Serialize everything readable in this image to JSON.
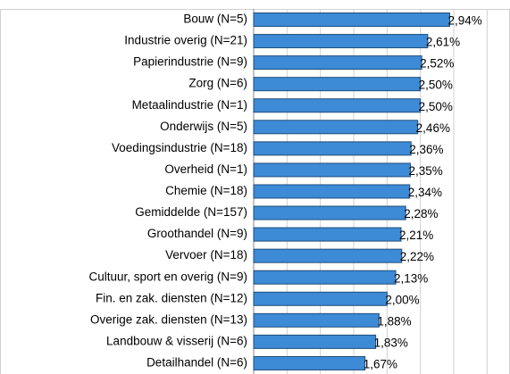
{
  "chart_data": {
    "type": "bar",
    "orientation": "horizontal",
    "categories": [
      "Bouw (N=5)",
      "Industrie overig (N=21)",
      "Papierindustrie (N=9)",
      "Zorg (N=6)",
      "Metaalindustrie (N=1)",
      "Onderwijs (N=5)",
      "Voedingsindustrie (N=18)",
      "Overheid (N=1)",
      "Chemie (N=18)",
      "Gemiddelde (N=157)",
      "Groothandel (N=9)",
      "Vervoer (N=18)",
      "Cultuur, sport en overig (N=9)",
      "Fin. en zak. diensten (N=12)",
      "Overige zak. diensten (N=13)",
      "Landbouw & visserij (N=6)",
      "Detailhandel (N=6)"
    ],
    "values": [
      2.94,
      2.61,
      2.52,
      2.5,
      2.5,
      2.46,
      2.36,
      2.35,
      2.34,
      2.28,
      2.21,
      2.22,
      2.13,
      2.0,
      1.88,
      1.83,
      1.67
    ],
    "value_labels": [
      "2,94%",
      "2,61%",
      "2,52%",
      "2,50%",
      "2,50%",
      "2,46%",
      "2,36%",
      "2,35%",
      "2,34%",
      "2,28%",
      "2,21%",
      "2,22%",
      "2,13%",
      "2,00%",
      "1,88%",
      "1,83%",
      "1,67%"
    ],
    "color": "#3d8ad6",
    "xlim": [
      0,
      3.75
    ],
    "xticks": [
      0,
      0.5,
      1,
      1.5,
      2,
      2.5,
      3,
      3.5
    ],
    "grid": true
  }
}
